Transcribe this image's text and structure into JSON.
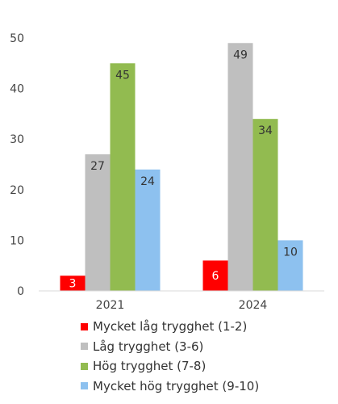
{
  "chart_data": {
    "type": "bar",
    "title": "",
    "xlabel": "",
    "ylabel": "",
    "categories": [
      "2021",
      "2024"
    ],
    "ylim": [
      0,
      50
    ],
    "yticks": [
      "0",
      "10",
      "20",
      "30",
      "40",
      "50"
    ],
    "grid": false,
    "legend_position": "bottom",
    "series": [
      {
        "name": "Mycket låg trygghet (1-2)",
        "values": [
          3,
          6
        ],
        "color": "#ff0000",
        "label_color": "#ffffff"
      },
      {
        "name": "Låg trygghet (3-6)",
        "values": [
          27,
          49
        ],
        "color": "#bfbfbf",
        "label_color": "#333333"
      },
      {
        "name": "Hög trygghet (7-8)",
        "values": [
          45,
          34
        ],
        "color": "#92bb50",
        "label_color": "#333333"
      },
      {
        "name": "Mycket hög trygghet (9-10)",
        "values": [
          24,
          10
        ],
        "color": "#8dc1ef",
        "label_color": "#333333"
      }
    ]
  }
}
